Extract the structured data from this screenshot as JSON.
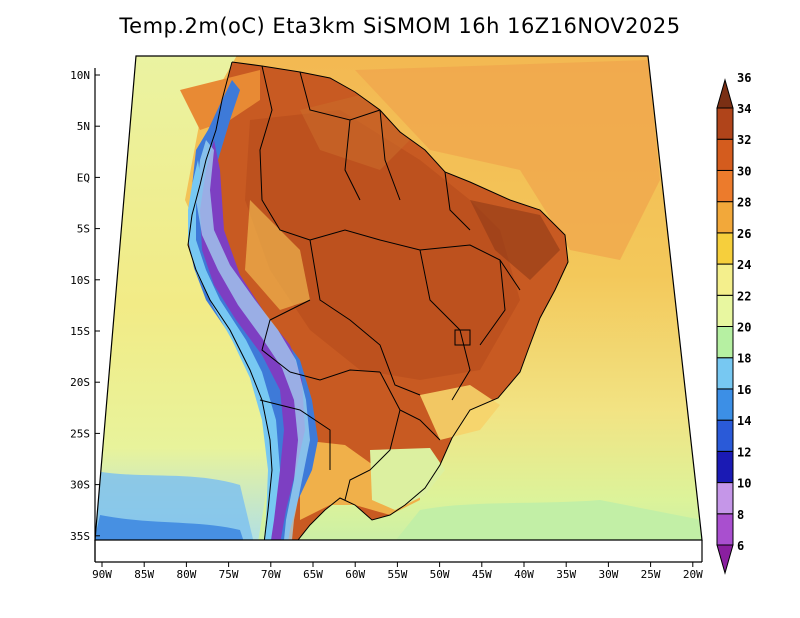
{
  "title": "Temp.2m(oC) Eta3km SiSMOM 16h 16Z16NOV2025",
  "map": {
    "variable": "2m temperature",
    "units": "oC",
    "region": "South America",
    "lat_labels": [
      "10N",
      "5N",
      "EQ",
      "5S",
      "10S",
      "15S",
      "20S",
      "25S",
      "30S",
      "35S"
    ],
    "lon_labels": [
      "90W",
      "85W",
      "80W",
      "75W",
      "70W",
      "65W",
      "60W",
      "55W",
      "50W",
      "45W",
      "40W",
      "35W",
      "30W",
      "25W",
      "20W"
    ]
  },
  "colorbar": {
    "levels": [
      "6",
      "8",
      "10",
      "12",
      "14",
      "16",
      "18",
      "20",
      "22",
      "24",
      "26",
      "28",
      "30",
      "32",
      "34",
      "36"
    ],
    "colors": [
      "#8a1fa0",
      "#a94fcf",
      "#c596e8",
      "#1a1ab4",
      "#2a5ad8",
      "#3c8fe6",
      "#77c8f2",
      "#b6f0a2",
      "#e8f7a0",
      "#f4ef8c",
      "#f6cf3c",
      "#f2a83a",
      "#ec7b2c",
      "#d45c1e",
      "#b0441a",
      "#7a2f14"
    ]
  },
  "palette": {
    "ocean_warm": "#f0a94a",
    "ocean_mid": "#f6d160",
    "ocean_cool": "#edef8e",
    "ocean_cold": "#c9f0a4",
    "land_hot": "#c05520",
    "land_warm": "#e07a30",
    "andes_cold": "#3c72d8"
  }
}
